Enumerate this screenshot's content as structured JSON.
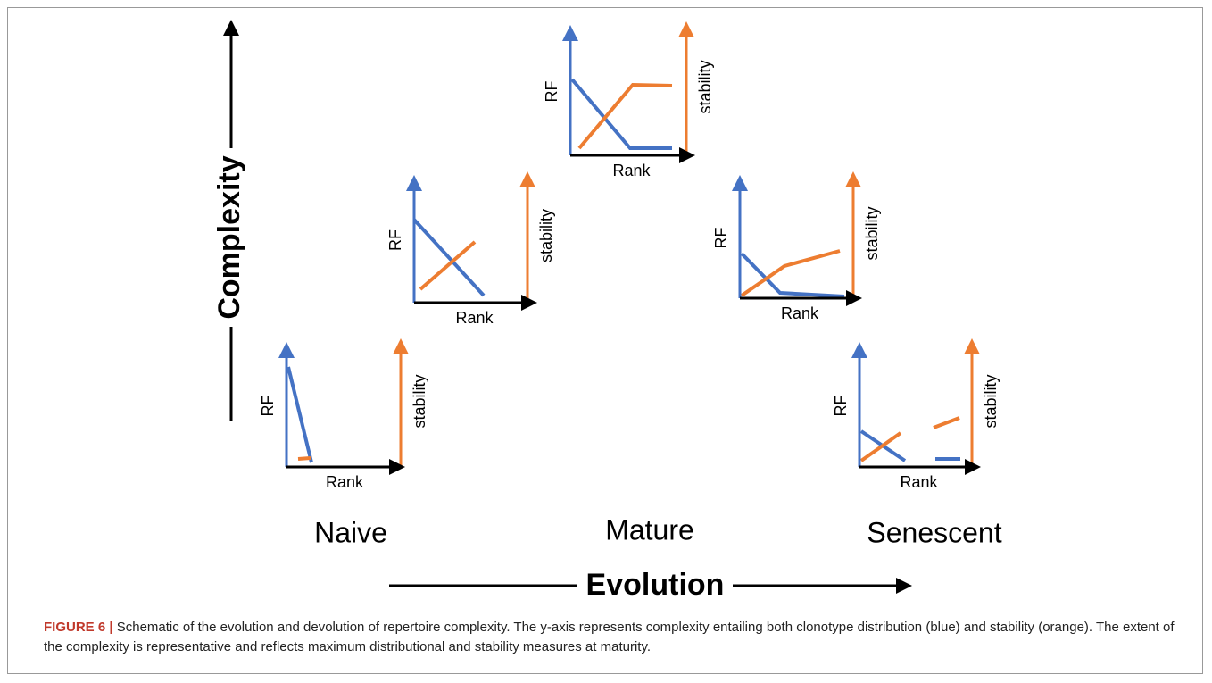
{
  "axes": {
    "y": "Complexity",
    "x": "Evolution"
  },
  "stages": [
    "Naive",
    "Mature",
    "Senescent"
  ],
  "panels": [
    {
      "y_label": "RF",
      "x_label": "Rank",
      "y2_label": "stability"
    },
    {
      "y_label": "RF",
      "x_label": "Rank",
      "y2_label": "stability"
    },
    {
      "y_label": "RF",
      "x_label": "Rank",
      "y2_label": "stability"
    },
    {
      "y_label": "RF",
      "x_label": "Rank",
      "y2_label": "stability"
    },
    {
      "y_label": "RF",
      "x_label": "Rank",
      "y2_label": "stability"
    }
  ],
  "caption": {
    "label": "FIGURE 6 |",
    "text": "Schematic of the evolution and devolution of repertoire complexity. The y-axis represents complexity entailing both clonotype distribution (blue) and stability (orange). The extent of the complexity is representative and reflects maximum distributional and stability measures at maturity."
  }
}
